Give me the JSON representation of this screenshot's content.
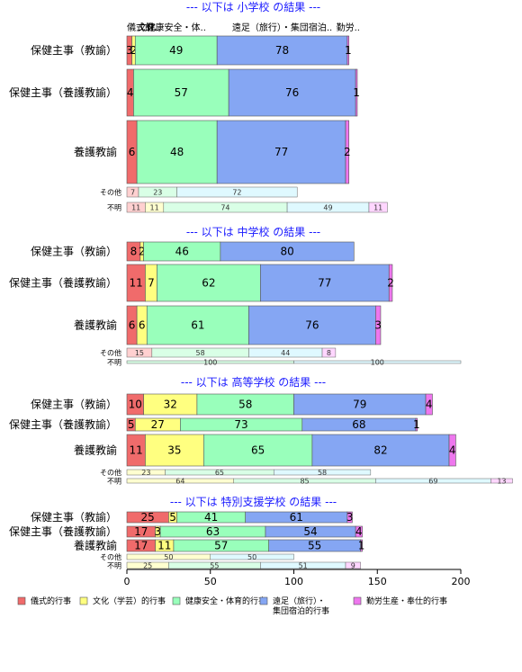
{
  "chart_data": {
    "type": "bar",
    "orientation": "horizontal",
    "stacked": true,
    "xlim": [
      0,
      200
    ],
    "x_ticks": [
      0,
      50,
      100,
      150,
      200
    ],
    "series_names": [
      "儀式的行事",
      "文化（学芸）的行事",
      "健康安全・体育的行事",
      "遠足（旅行）・集団宿泊的行事",
      "勤労生産・奉仕的行事"
    ],
    "legend_labels": [
      "儀式的行事",
      "文化（学芸）的行事",
      "健康安全・体育的行事",
      "遠足（旅行）・\n集団宿泊的行事",
      "勤労生産・奉仕的行事"
    ],
    "colors": [
      "#f06b6b",
      "#ffff80",
      "#99ffbb",
      "#85a6f3",
      "#ee77ee"
    ],
    "small_colors": [
      "#ffd0d0",
      "#ffffd0",
      "#d9ffe6",
      "#dff9ff",
      "#ffd6ff"
    ],
    "panels": [
      {
        "title": "--- 以下は 小学校 の結果 ---",
        "top_labels": [
          "儀式的..",
          "文化..",
          "健康安全・体..",
          "遠足（旅行）・集団宿泊..",
          "勤労.."
        ],
        "rows": [
          {
            "category": "保健主事（教諭）",
            "values": [
              3,
              2,
              49,
              78,
              1
            ]
          },
          {
            "category": "保健主事（養護教諭）",
            "values": [
              4,
              0,
              57,
              76,
              1
            ]
          },
          {
            "category": "養護教諭",
            "values": [
              6,
              0,
              48,
              77,
              2
            ]
          }
        ],
        "small_rows": [
          {
            "category": "その他",
            "values": [
              7,
              0,
              23,
              72,
              0
            ]
          },
          {
            "category": "不明",
            "values": [
              11,
              11,
              74,
              49,
              11
            ]
          }
        ]
      },
      {
        "title": "--- 以下は 中学校 の結果 ---",
        "rows": [
          {
            "category": "保健主事（教諭）",
            "values": [
              8,
              2,
              46,
              80,
              0
            ]
          },
          {
            "category": "保健主事（養護教諭）",
            "values": [
              11,
              7,
              62,
              77,
              2
            ]
          },
          {
            "category": "養護教諭",
            "values": [
              6,
              6,
              61,
              76,
              3
            ]
          }
        ],
        "small_rows": [
          {
            "category": "その他",
            "values": [
              15,
              0,
              58,
              44,
              8
            ]
          },
          {
            "category": "不明",
            "values": [
              0,
              0,
              100,
              100,
              0
            ]
          }
        ]
      },
      {
        "title": "--- 以下は 高等学校 の結果 ---",
        "rows": [
          {
            "category": "保健主事（教諭）",
            "values": [
              10,
              32,
              58,
              79,
              4
            ]
          },
          {
            "category": "保健主事（養護教諭）",
            "values": [
              5,
              27,
              73,
              68,
              1
            ]
          },
          {
            "category": "養護教諭",
            "values": [
              11,
              35,
              65,
              82,
              4
            ]
          }
        ],
        "small_rows": [
          {
            "category": "その他",
            "values": [
              0,
              23,
              65,
              58,
              0
            ]
          },
          {
            "category": "不明",
            "values": [
              0,
              64,
              85,
              69,
              13
            ]
          }
        ]
      },
      {
        "title": "--- 以下は 特別支援学校 の結果 ---",
        "rows": [
          {
            "category": "保健主事（教諭）",
            "values": [
              25,
              5,
              41,
              61,
              3
            ]
          },
          {
            "category": "保健主事（養護教諭）",
            "values": [
              17,
              3,
              63,
              54,
              4
            ]
          },
          {
            "category": "養護教諭",
            "values": [
              17,
              11,
              57,
              55,
              1
            ]
          }
        ],
        "small_rows": [
          {
            "category": "その他",
            "values": [
              0,
              50,
              0,
              50,
              0
            ]
          },
          {
            "category": "不明",
            "values": [
              0,
              25,
              55,
              51,
              9
            ]
          }
        ]
      }
    ]
  }
}
